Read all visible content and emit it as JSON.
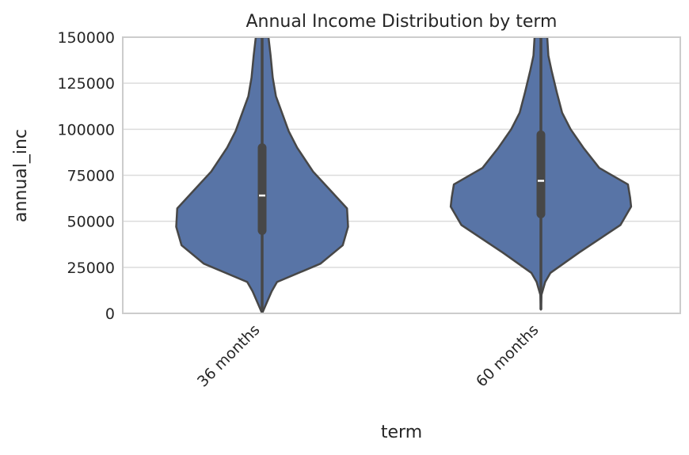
{
  "chart_data": {
    "type": "violin",
    "title": "Annual Income Distribution by term",
    "xlabel": "term",
    "ylabel": "annual_inc",
    "ylim": [
      0,
      150000
    ],
    "yticks": [
      0,
      25000,
      50000,
      75000,
      100000,
      125000,
      150000
    ],
    "ytick_labels": [
      "0",
      "25000",
      "50000",
      "75000",
      "100000",
      "125000",
      "150000"
    ],
    "categories": [
      "36 months",
      "60 months"
    ],
    "grid": true,
    "colors": {
      "violin_fill": "#5874a6",
      "outline": "#474747",
      "grid": "#dcdcdc",
      "frame": "#cccccc",
      "median": "#ffffff"
    },
    "violins": [
      {
        "category": "36 months",
        "whisker": [
          0,
          150000
        ],
        "q1": 45000,
        "median": 64000,
        "q3": 90000,
        "profile": [
          [
            0,
            0.0
          ],
          [
            4000,
            0.03
          ],
          [
            12000,
            0.09
          ],
          [
            17000,
            0.14
          ],
          [
            27000,
            0.55
          ],
          [
            37000,
            0.76
          ],
          [
            47000,
            0.81
          ],
          [
            57000,
            0.8
          ],
          [
            67000,
            0.64
          ],
          [
            77000,
            0.48
          ],
          [
            90000,
            0.33
          ],
          [
            99000,
            0.25
          ],
          [
            118000,
            0.13
          ],
          [
            128000,
            0.1
          ],
          [
            140000,
            0.08
          ],
          [
            150000,
            0.06
          ]
        ]
      },
      {
        "category": "60 months",
        "whisker": [
          2000,
          150000
        ],
        "q1": 54000,
        "median": 72000,
        "q3": 97000,
        "profile": [
          [
            2000,
            0.0
          ],
          [
            10000,
            0.005
          ],
          [
            17000,
            0.04
          ],
          [
            22000,
            0.09
          ],
          [
            33000,
            0.36
          ],
          [
            48000,
            0.75
          ],
          [
            58000,
            0.85
          ],
          [
            63000,
            0.84
          ],
          [
            70000,
            0.82
          ],
          [
            79000,
            0.55
          ],
          [
            90000,
            0.4
          ],
          [
            100000,
            0.28
          ],
          [
            109000,
            0.2
          ],
          [
            120000,
            0.15
          ],
          [
            132000,
            0.1
          ],
          [
            140000,
            0.07
          ],
          [
            150000,
            0.06
          ]
        ]
      }
    ]
  }
}
